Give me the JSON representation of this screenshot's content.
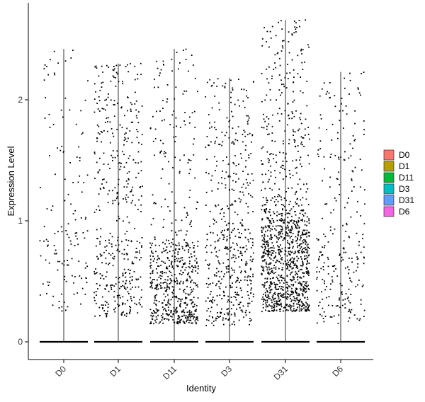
{
  "chart_data": {
    "type": "scatter",
    "subtype": "violin-jitter",
    "title": "",
    "xlabel": "Identity",
    "ylabel": "Expression Level",
    "categories": [
      "D0",
      "D1",
      "D11",
      "D3",
      "D31",
      "D6"
    ],
    "yticks": [
      0,
      1,
      2
    ],
    "ylim": [
      -0.15,
      2.8
    ],
    "legend": {
      "position": "right",
      "entries": [
        {
          "label": "D0",
          "color": "#F8766D"
        },
        {
          "label": "D1",
          "color": "#B79F00"
        },
        {
          "label": "D11",
          "color": "#00BA38"
        },
        {
          "label": "D3",
          "color": "#00BFC4"
        },
        {
          "label": "D31",
          "color": "#619CFF"
        },
        {
          "label": "D6",
          "color": "#F564E3"
        }
      ]
    },
    "series": [
      {
        "name": "D0",
        "max": 2.42,
        "n_nonzero": 140,
        "zero_baseline": true
      },
      {
        "name": "D1",
        "max": 2.3,
        "n_nonzero": 450,
        "zero_baseline": true
      },
      {
        "name": "D11",
        "max": 2.42,
        "n_nonzero": 620,
        "zero_baseline": true
      },
      {
        "name": "D3",
        "max": 2.18,
        "n_nonzero": 500,
        "zero_baseline": true
      },
      {
        "name": "D31",
        "max": 2.66,
        "n_nonzero": 1150,
        "zero_baseline": true
      },
      {
        "name": "D6",
        "max": 2.23,
        "n_nonzero": 260,
        "zero_baseline": true
      }
    ],
    "grid": false,
    "point_color": "#000000"
  }
}
